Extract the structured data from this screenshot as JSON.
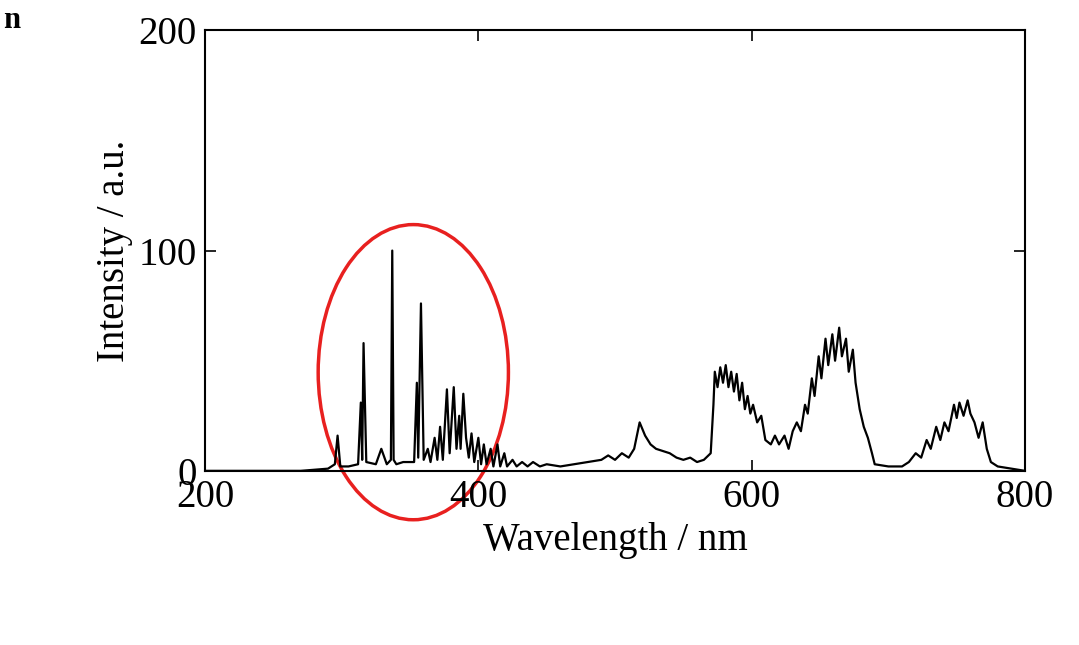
{
  "chart_data": {
    "type": "line",
    "title": "n",
    "x_label": "Wavelength / nm",
    "y_label": "Intensity / a.u.",
    "x": [
      200,
      270,
      290,
      295,
      297,
      299,
      305,
      312,
      314,
      315,
      316,
      318,
      325,
      329,
      333,
      336,
      337,
      338,
      340,
      345,
      350,
      353,
      355,
      356,
      358,
      360,
      363,
      365,
      368,
      370,
      372,
      374,
      377,
      379,
      382,
      384,
      386,
      387,
      389,
      391,
      393,
      395,
      397,
      400,
      402,
      404,
      406,
      409,
      411,
      414,
      416,
      419,
      421,
      425,
      428,
      432,
      436,
      440,
      445,
      450,
      460,
      470,
      480,
      490,
      495,
      500,
      505,
      510,
      514,
      518,
      522,
      526,
      530,
      535,
      540,
      545,
      550,
      555,
      560,
      565,
      570,
      572,
      573,
      575,
      577,
      579,
      581,
      583,
      585,
      587,
      589,
      591,
      593,
      595,
      597,
      599,
      601,
      604,
      607,
      610,
      614,
      617,
      620,
      624,
      627,
      630,
      633,
      636,
      639,
      641,
      644,
      646,
      649,
      651,
      654,
      656,
      659,
      661,
      664,
      666,
      669,
      671,
      674,
      676,
      679,
      682,
      685,
      688,
      690,
      700,
      710,
      715,
      720,
      724,
      728,
      731,
      735,
      738,
      741,
      744,
      748,
      750,
      752,
      755,
      758,
      760,
      763,
      766,
      769,
      772,
      775,
      780,
      790,
      800
    ],
    "values": [
      0,
      0,
      1,
      3,
      16,
      2,
      2,
      3,
      31,
      5,
      58,
      4,
      3,
      10,
      3,
      5,
      100,
      5,
      3,
      4,
      4,
      4,
      40,
      6,
      76,
      5,
      10,
      4,
      15,
      5,
      20,
      5,
      37,
      8,
      38,
      10,
      25,
      10,
      35,
      15,
      6,
      17,
      4,
      15,
      3,
      12,
      3,
      10,
      2,
      12,
      2,
      8,
      2,
      5,
      2,
      4,
      2,
      4,
      2,
      3,
      2,
      3,
      4,
      5,
      7,
      5,
      8,
      6,
      10,
      22,
      16,
      12,
      10,
      9,
      8,
      6,
      5,
      6,
      4,
      5,
      8,
      30,
      45,
      38,
      47,
      40,
      48,
      38,
      45,
      36,
      44,
      32,
      40,
      28,
      34,
      26,
      30,
      22,
      25,
      14,
      12,
      16,
      12,
      16,
      10,
      18,
      22,
      18,
      30,
      26,
      42,
      34,
      52,
      42,
      60,
      48,
      62,
      50,
      65,
      52,
      60,
      45,
      55,
      40,
      28,
      20,
      15,
      8,
      3,
      2,
      2,
      4,
      8,
      6,
      14,
      10,
      20,
      14,
      22,
      18,
      30,
      24,
      31,
      25,
      32,
      26,
      22,
      15,
      22,
      10,
      4,
      2,
      1,
      0
    ],
    "color": "#000000",
    "xlim": [
      200,
      800
    ],
    "xticks": [
      200,
      400,
      600,
      800
    ],
    "ylim": [
      0,
      200
    ],
    "yticks": [
      0,
      100,
      200
    ],
    "grid": false
  }
}
